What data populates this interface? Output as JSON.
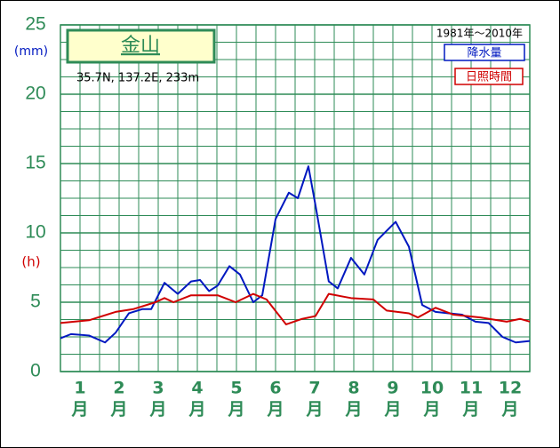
{
  "chart_data": {
    "type": "line",
    "title": "金山",
    "location": "35.7N, 137.2E, 233m",
    "period": "1981年～2010年",
    "y_unit_precip": "(mm)",
    "y_unit_sun": "(h)",
    "categories": [
      "1",
      "2",
      "3",
      "4",
      "5",
      "6",
      "7",
      "8",
      "9",
      "10",
      "11",
      "12"
    ],
    "month_suffix": "月",
    "xlim": [
      0.5,
      12.5
    ],
    "ylim": [
      0,
      25
    ],
    "yticks": [
      0,
      5,
      10,
      15,
      20,
      25
    ],
    "grid": true,
    "series": [
      {
        "name": "降水量",
        "color": "#0018c0",
        "x": [
          0.5,
          0.77,
          1.23,
          1.64,
          1.91,
          2.25,
          2.59,
          2.82,
          3.16,
          3.5,
          3.84,
          4.07,
          4.3,
          4.52,
          4.82,
          5.09,
          5.43,
          5.66,
          6.0,
          6.34,
          6.57,
          6.84,
          7.02,
          7.36,
          7.59,
          7.93,
          8.27,
          8.61,
          9.07,
          9.41,
          9.75,
          10.09,
          10.43,
          10.77,
          11.11,
          11.45,
          11.8,
          12.14,
          12.5
        ],
        "values": [
          2.4,
          2.7,
          2.6,
          2.1,
          2.8,
          4.2,
          4.5,
          4.5,
          6.4,
          5.6,
          6.5,
          6.6,
          5.8,
          6.2,
          7.6,
          7.0,
          5.0,
          5.5,
          11.0,
          12.9,
          12.5,
          14.8,
          12.0,
          6.5,
          6.0,
          8.2,
          7.0,
          9.5,
          10.8,
          9.0,
          4.8,
          4.3,
          4.2,
          4.1,
          3.6,
          3.5,
          2.5,
          2.1,
          2.2
        ]
      },
      {
        "name": "日照時間",
        "color": "#d00000",
        "x": [
          0.5,
          1.23,
          1.91,
          2.36,
          2.93,
          3.16,
          3.39,
          3.84,
          4.52,
          4.98,
          5.43,
          5.77,
          6.27,
          6.68,
          7.02,
          7.36,
          7.93,
          8.5,
          8.84,
          9.41,
          9.64,
          10.09,
          10.55,
          11.23,
          11.91,
          12.25,
          12.5
        ],
        "values": [
          3.5,
          3.7,
          4.3,
          4.5,
          5.0,
          5.3,
          5.0,
          5.5,
          5.5,
          5.0,
          5.6,
          5.2,
          3.4,
          3.8,
          4.0,
          5.6,
          5.3,
          5.2,
          4.4,
          4.2,
          3.9,
          4.6,
          4.1,
          3.9,
          3.6,
          3.8,
          3.6
        ]
      }
    ]
  }
}
